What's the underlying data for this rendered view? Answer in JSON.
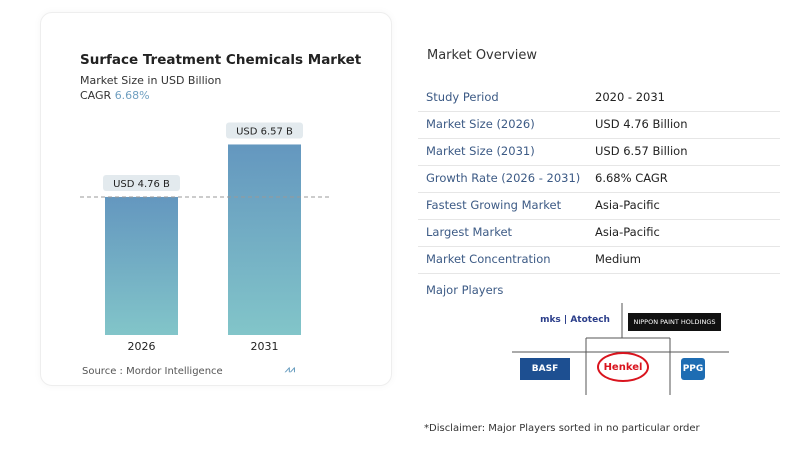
{
  "chart_data": {
    "type": "bar",
    "title": "Surface Treatment Chemicals Market",
    "subtitle": "Market Size in USD Billion",
    "cagr_label": "CAGR",
    "cagr_value": "6.68%",
    "categories": [
      "2026",
      "2031"
    ],
    "values": [
      4.76,
      6.57
    ],
    "data_labels": [
      "USD 4.76 B",
      "USD 6.57 B"
    ],
    "ylim": [
      0,
      7
    ],
    "grid": false,
    "bar_color": "#6a9ec0",
    "source": "Source : Mordor Intelligence"
  },
  "overview": {
    "title": "Market Overview",
    "rows": [
      {
        "k": "Study Period",
        "v": "2020 - 2031"
      },
      {
        "k": "Market Size (2026)",
        "v": "USD 4.76 Billion"
      },
      {
        "k": "Market Size (2031)",
        "v": "USD 6.57 Billion"
      },
      {
        "k": "Growth Rate (2026 - 2031)",
        "v": "6.68% CAGR"
      },
      {
        "k": "Fastest Growing Market",
        "v": "Asia-Pacific"
      },
      {
        "k": "Largest Market",
        "v": "Asia-Pacific"
      },
      {
        "k": "Market Concentration",
        "v": "Medium"
      }
    ],
    "major_players_label": "Major Players",
    "players": [
      "mks | Atotech",
      "NIPPON PAINT HOLDINGS",
      "BASF",
      "Henkel",
      "PPG"
    ],
    "disclaimer": "*Disclaimer: Major Players sorted in no particular order"
  }
}
